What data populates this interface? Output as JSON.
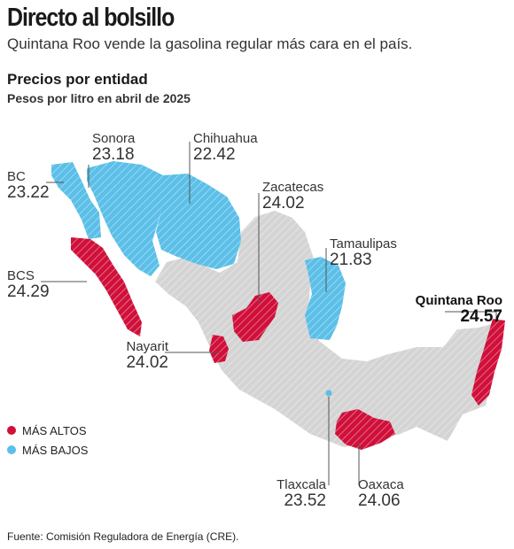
{
  "title": "Directo al bolsillo",
  "subtitle": "Quintana Roo vende la gasolina regular más cara en el país.",
  "section_title": "Precios por entidad",
  "section_subtitle": "Pesos por litro en abril de 2025",
  "colors": {
    "high": "#d0103a",
    "low": "#5bbfe8",
    "other": "#d4d4d4",
    "leader": "#555555"
  },
  "legend": [
    {
      "label": "MÁS ALTOS",
      "color": "#d0103a"
    },
    {
      "label": "MÁS BAJOS",
      "color": "#5bbfe8"
    }
  ],
  "states": [
    {
      "name": "Sonora",
      "price": "23.18",
      "category": "low"
    },
    {
      "name": "Chihuahua",
      "price": "22.42",
      "category": "low"
    },
    {
      "name": "BC",
      "price": "23.22",
      "category": "low"
    },
    {
      "name": "Zacatecas",
      "price": "24.02",
      "category": "high"
    },
    {
      "name": "Tamaulipas",
      "price": "21.83",
      "category": "low"
    },
    {
      "name": "BCS",
      "price": "24.29",
      "category": "high"
    },
    {
      "name": "Quintana Roo",
      "price": "24.57",
      "category": "high"
    },
    {
      "name": "Nayarit",
      "price": "24.02",
      "category": "high"
    },
    {
      "name": "Tlaxcala",
      "price": "23.52",
      "category": "low"
    },
    {
      "name": "Oaxaca",
      "price": "24.06",
      "category": "high"
    }
  ],
  "source": "Fuente: Comisión Reguladora de Energía (CRE)."
}
